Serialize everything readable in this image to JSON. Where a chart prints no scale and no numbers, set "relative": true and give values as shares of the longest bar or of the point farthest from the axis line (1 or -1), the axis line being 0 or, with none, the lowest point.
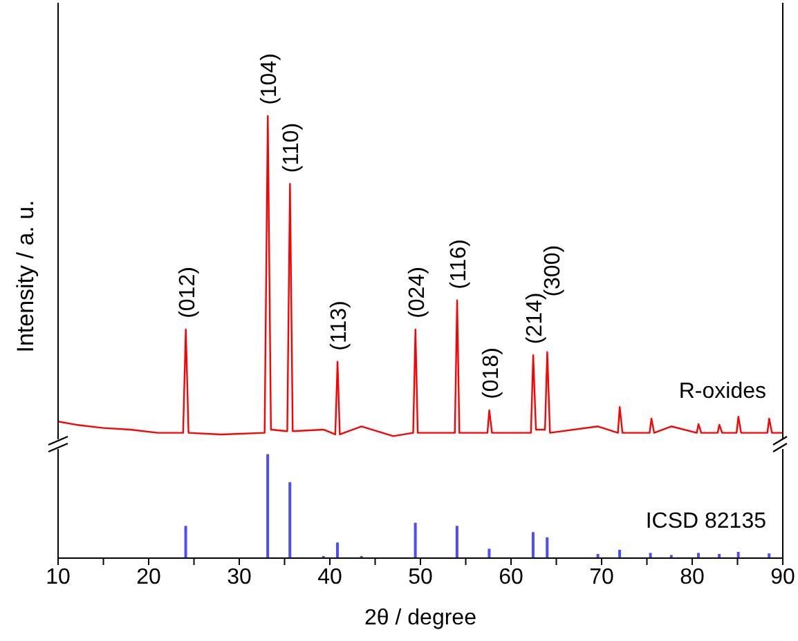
{
  "chart_data": [
    {
      "type": "line",
      "relative": true,
      "ylabel": "Intensity / a. u.",
      "tick_labels": false,
      "xlim": [
        10,
        90
      ],
      "legend": false,
      "grid": false,
      "marker": "none",
      "series": [
        {
          "name": "R-oxides",
          "color": "#ff0000",
          "x": [
            10,
            12,
            15,
            18,
            21,
            23.8,
            24.1,
            24.4,
            28,
            32.8,
            33.15,
            33.5,
            35.3,
            35.6,
            35.9,
            39.3,
            40.6,
            40.85,
            41.1,
            43.5,
            47,
            49.2,
            49.45,
            49.7,
            53.8,
            54.05,
            54.3,
            57.4,
            57.6,
            57.9,
            62.2,
            62.45,
            62.75,
            63.75,
            64.0,
            64.3,
            69.6,
            71.8,
            72.0,
            72.3,
            75.3,
            75.5,
            75.8,
            77.7,
            80.5,
            80.7,
            81,
            82.8,
            83.0,
            83.3,
            84.9,
            85.1,
            85.4,
            88.3,
            88.5,
            88.8,
            90
          ],
          "values": [
            0.055,
            0.045,
            0.035,
            0.03,
            0.02,
            0.02,
            0.34,
            0.02,
            0.015,
            0.02,
            1,
            0.03,
            0.025,
            0.79,
            0.025,
            0.03,
            0.015,
            0.24,
            0.015,
            0.04,
            0.01,
            0.02,
            0.34,
            0.02,
            0.02,
            0.43,
            0.02,
            0.02,
            0.09,
            0.02,
            0.02,
            0.26,
            0.03,
            0.03,
            0.27,
            0.02,
            0.04,
            0.02,
            0.1,
            0.02,
            0.02,
            0.064,
            0.02,
            0.04,
            0.02,
            0.047,
            0.02,
            0.02,
            0.045,
            0.02,
            0.02,
            0.07,
            0.02,
            0.02,
            0.064,
            0.02,
            0.02
          ]
        }
      ],
      "annotations": [
        {
          "text": "(012)",
          "x": 24.1,
          "y": 0.34
        },
        {
          "text": "(104)",
          "x": 33.15,
          "y": 1
        },
        {
          "text": "(110)",
          "x": 35.6,
          "y": 0.79
        },
        {
          "text": "(113)",
          "x": 40.85,
          "y": 0.24
        },
        {
          "text": "(024)",
          "x": 49.45,
          "y": 0.34
        },
        {
          "text": "(116)",
          "x": 54.05,
          "y": 0.43
        },
        {
          "text": "(018)",
          "x": 57.6,
          "y": 0.09
        },
        {
          "text": "(214)",
          "x": 62.45,
          "y": 0.26
        },
        {
          "text": "(300)",
          "x": 64.0,
          "y": 0.27
        }
      ]
    },
    {
      "type": "bar",
      "relative": true,
      "xlabel": "2θ / degree",
      "tick_labels": "x",
      "xlim": [
        10,
        90
      ],
      "legend": false,
      "grid": false,
      "xticks": [
        10,
        {
          "value": 15,
          "label": null
        },
        20,
        {
          "value": 25,
          "label": null
        },
        30,
        {
          "value": 35,
          "label": null
        },
        40,
        {
          "value": 45,
          "label": null
        },
        50,
        {
          "value": 55,
          "label": null
        },
        60,
        {
          "value": 65,
          "label": null
        },
        70,
        {
          "value": 75,
          "label": null
        },
        80,
        {
          "value": 85,
          "label": null
        },
        90
      ],
      "series": [
        {
          "name": "ICSD 82135",
          "color": "#4d4dff",
          "x": [
            24.1,
            33.15,
            35.6,
            39.3,
            40.85,
            43.5,
            49.45,
            54.05,
            57.6,
            62.45,
            64.0,
            69.6,
            72.0,
            75.4,
            77.7,
            80.7,
            83.0,
            85.1,
            88.5
          ],
          "values": [
            0.31,
            1,
            0.73,
            0.02,
            0.15,
            0.02,
            0.34,
            0.31,
            0.09,
            0.25,
            0.2,
            0.04,
            0.08,
            0.05,
            0.03,
            0.05,
            0.04,
            0.06,
            0.045
          ]
        }
      ]
    }
  ]
}
